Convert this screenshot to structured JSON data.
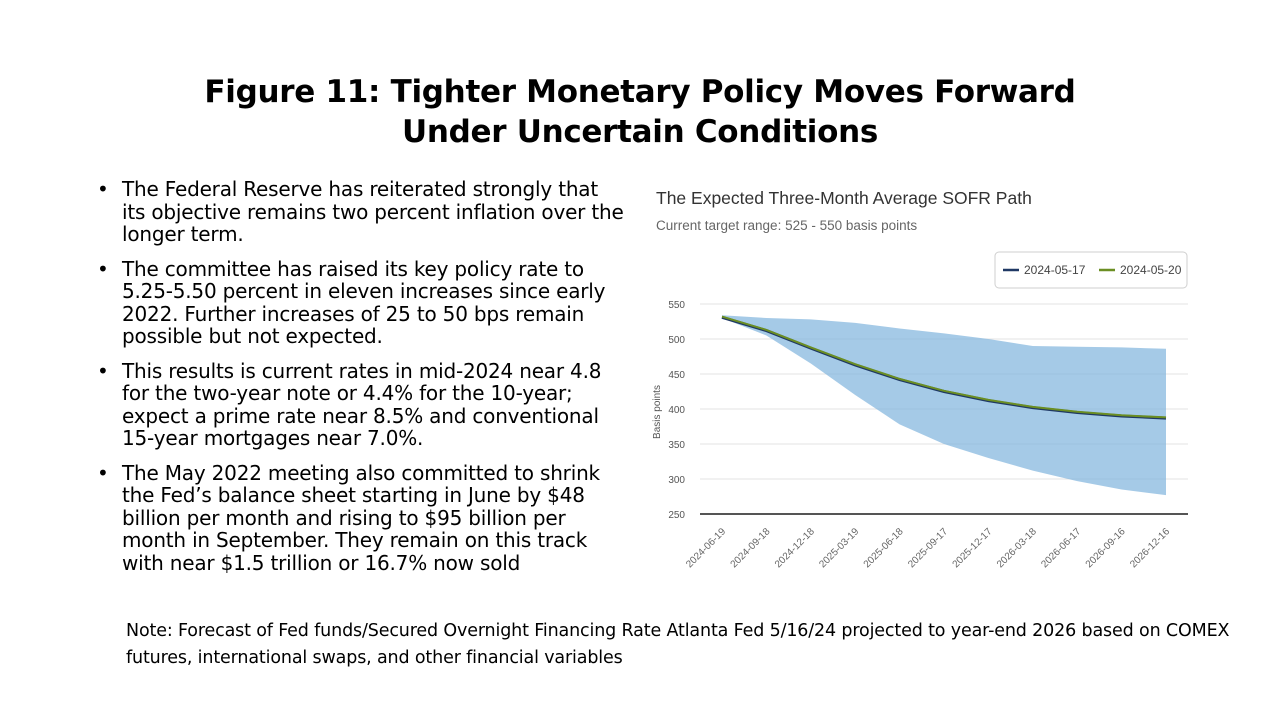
{
  "slide": {
    "title_line1": "Figure 11: Tighter Monetary Policy Moves Forward",
    "title_line2": "Under Uncertain Conditions",
    "bullets": [
      "The Federal Reserve has reiterated strongly that its objective remains two percent inflation over the longer term.",
      "The committee has raised its key policy rate to 5.25-5.50 percent in eleven increases since early 2022. Further increases of 25 to 50 bps remain possible but not expected.",
      "This results is current rates in mid-2024 near 4.8  for the two-year note or 4.4% for the 10-year; expect a prime rate near 8.5% and conventional 15-year mortgages near 7.0%.",
      "The May 2022 meeting also committed to shrink the Fed’s balance sheet starting in June by $48 billion per month and rising to $95 billion per month in September. They remain on this track with near $1.5 trillion or 16.7% now sold"
    ],
    "bullet_glyph": "•",
    "note": "Note: Forecast of Fed funds/Secured Overnight Financing Rate Atlanta Fed 5/16/24 projected to year-end 2026 based on COMEX futures, international swaps,  and other financial variables"
  },
  "chart_data": {
    "type": "line",
    "title": "The Expected Three-Month Average SOFR Path",
    "subtitle": "Current target range: 525 - 550 basis points",
    "xlabel": "",
    "ylabel": "Basis points",
    "ylim": [
      250,
      550
    ],
    "yticks": [
      550,
      500,
      450,
      400,
      350,
      300,
      250
    ],
    "categories": [
      "2024-06-19",
      "2024-09-18",
      "2024-12-18",
      "2025-03-19",
      "2025-06-18",
      "2025-09-17",
      "2025-12-17",
      "2026-03-18",
      "2026-06-17",
      "2026-09-16",
      "2026-12-16"
    ],
    "series": [
      {
        "name": "2024-05-17",
        "color": "#1f3864",
        "values": [
          531,
          512,
          487,
          463,
          442,
          425,
          412,
          402,
          395,
          390,
          387
        ]
      },
      {
        "name": "2024-05-20",
        "color": "#6b8e23",
        "values": [
          532,
          513,
          488,
          464,
          443,
          426,
          413,
          403,
          396,
          391,
          388
        ]
      }
    ],
    "band": {
      "name": "range",
      "color": "#7fb3dd",
      "upper": [
        534,
        530,
        528,
        523,
        515,
        508,
        500,
        490,
        489,
        488,
        486
      ],
      "lower": [
        530,
        505,
        465,
        420,
        378,
        350,
        330,
        312,
        297,
        285,
        277
      ]
    },
    "legend_position": "top-right",
    "grid": true
  }
}
